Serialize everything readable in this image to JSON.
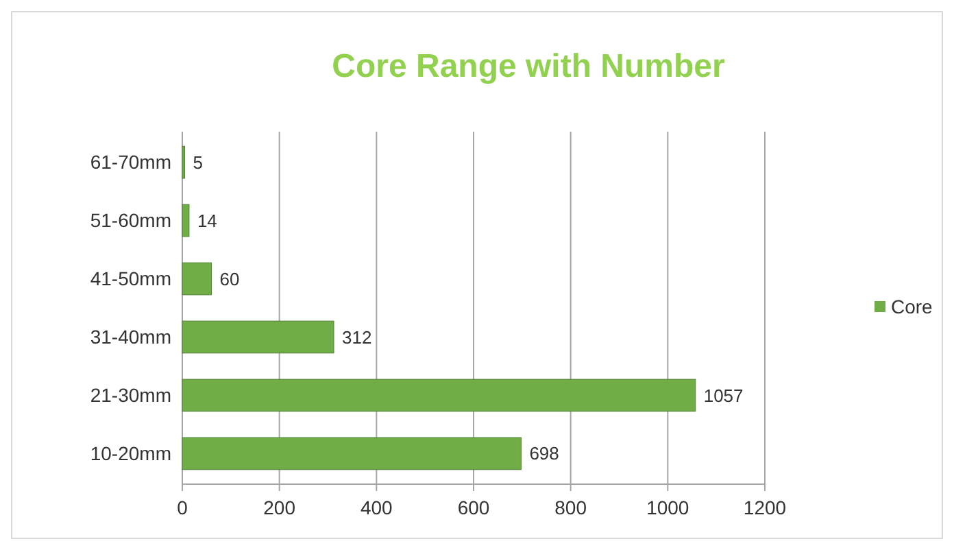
{
  "chart_data": {
    "type": "bar",
    "orientation": "horizontal",
    "title": "Core Range with Number",
    "categories": [
      "61-70mm",
      "51-60mm",
      "41-50mm",
      "31-40mm",
      "21-30mm",
      "10-20mm"
    ],
    "series": [
      {
        "name": "Core",
        "color": "#70ad47",
        "values": [
          5,
          14,
          60,
          312,
          1057,
          698
        ]
      }
    ],
    "xlim": [
      0,
      1200
    ],
    "xticks": [
      0,
      200,
      400,
      600,
      800,
      1000,
      1200
    ],
    "grid": "x",
    "legend": "right",
    "data_labels": true
  }
}
